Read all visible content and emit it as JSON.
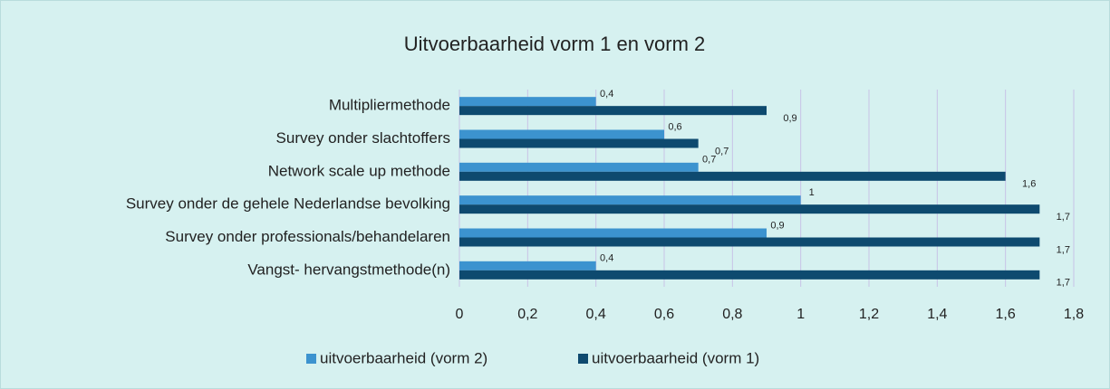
{
  "chart_data": {
    "type": "bar",
    "orientation": "horizontal",
    "title": "Uitvoerbaarheid vorm 1 en vorm 2",
    "categories": [
      "Multipliermethode",
      "Survey onder slachtoffers",
      "Network scale up methode",
      "Survey onder de gehele Nederlandse bevolking",
      "Survey onder professionals/behandelaren",
      "Vangst- hervangstmethode(n)"
    ],
    "series": [
      {
        "name": "uitvoerbaarheid (vorm 2)",
        "color": "#3c93cf",
        "values": [
          0.4,
          0.6,
          0.7,
          1,
          0.9,
          0.4
        ],
        "value_labels": [
          "0,4",
          "0,6",
          "0,7",
          "1",
          "0,9",
          "0,4"
        ]
      },
      {
        "name": "uitvoerbaarheid (vorm 1)",
        "color": "#0e4a6f",
        "values": [
          0.9,
          0.7,
          1.6,
          1.7,
          1.7,
          1.7
        ],
        "value_labels": [
          "0,9",
          "0,7",
          "1,6",
          "1,7",
          "1,7",
          "1,7"
        ]
      }
    ],
    "xlim": [
      0,
      1.8
    ],
    "xticks": [
      0,
      {
        "value": 0.2,
        "label": "0,2"
      },
      {
        "value": 0.4,
        "label": "0,4"
      },
      {
        "value": 0.6,
        "label": "0,6"
      },
      {
        "value": 0.8,
        "label": "0,8"
      },
      1,
      {
        "value": 1.2,
        "label": "1,2"
      },
      {
        "value": 1.4,
        "label": "1,4"
      },
      {
        "value": 1.6,
        "label": "1,6"
      },
      {
        "value": 1.8,
        "label": "1,8"
      }
    ],
    "grid": true,
    "legend": "bottom"
  }
}
